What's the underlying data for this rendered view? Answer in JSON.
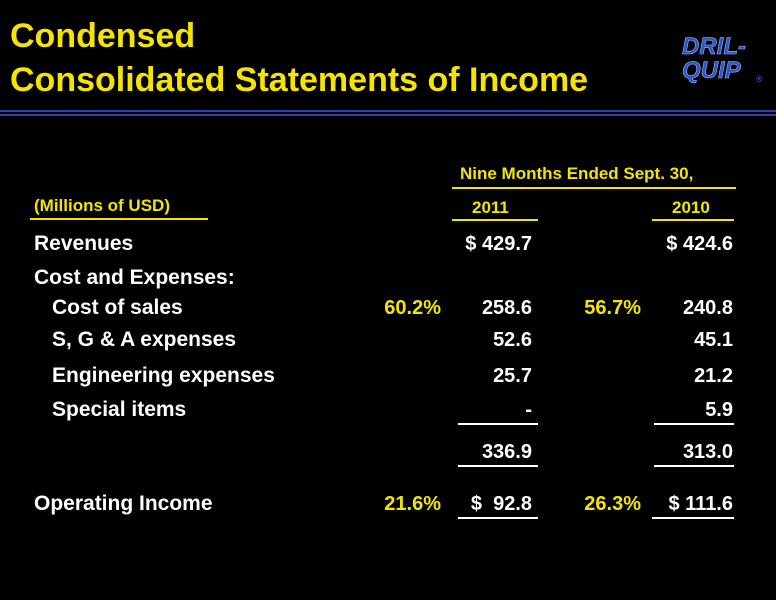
{
  "title": {
    "line1": "Condensed",
    "line2": "Consolidated Statements of Income"
  },
  "logo": {
    "line1": "DRIL-",
    "line2": "QUIP",
    "mark": "®"
  },
  "header": {
    "period": "Nine Months Ended Sept. 30,",
    "units": "(Millions of USD)",
    "year1": "2011",
    "year2": "2010"
  },
  "rows": {
    "revenues": {
      "label": "Revenues",
      "v2011": "$ 429.7",
      "v2010": "$ 424.6"
    },
    "cost_and_expenses": {
      "label": "Cost and Expenses:"
    },
    "cost_of_sales": {
      "label": "Cost of sales",
      "pct2011": "60.2%",
      "v2011": "258.6",
      "pct2010": "56.7%",
      "v2010": "240.8"
    },
    "sga": {
      "label": "S, G & A expenses",
      "v2011": "52.6",
      "v2010": "45.1"
    },
    "engineering": {
      "label": "Engineering expenses",
      "v2011": "25.7",
      "v2010": "21.2"
    },
    "special": {
      "label": "Special items",
      "v2011": "-",
      "v2010": "5.9"
    },
    "total": {
      "v2011": "336.9",
      "v2010": "313.0"
    },
    "operating_income": {
      "label": "Operating Income",
      "pct2011": "21.6%",
      "v2011": "$  92.8",
      "pct2010": "26.3%",
      "v2010": "$ 111.6"
    }
  },
  "colors": {
    "accent": "#f2e600",
    "rule": "#2f3fb0",
    "logo": "#2b55c8"
  }
}
